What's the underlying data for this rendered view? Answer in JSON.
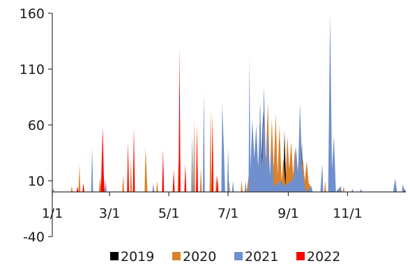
{
  "chart_data": {
    "type": "area",
    "title": "",
    "xlabel": "",
    "ylabel": "",
    "ylim": [
      -40,
      160
    ],
    "yticks": [
      -40,
      10,
      60,
      110,
      160
    ],
    "ytick_labels": [
      "-40",
      "10",
      "60",
      "110",
      "160"
    ],
    "xlim": [
      "1/1",
      "12/31"
    ],
    "xticks": [
      "1/1",
      "3/1",
      "5/1",
      "7/1",
      "9/1",
      "11/1"
    ],
    "xtick_labels": [
      "1/1",
      "3/1",
      "5/1",
      "7/1",
      "9/1",
      "11/1"
    ],
    "baseline": 0,
    "grid": false,
    "legend_position": "bottom",
    "series": [
      {
        "name": "2019",
        "color": "#000000",
        "points": [
          [
            "8/1",
            0
          ],
          [
            "8/3",
            80
          ],
          [
            "8/4",
            10
          ],
          [
            "8/6",
            72
          ],
          [
            "8/7",
            5
          ],
          [
            "8/16",
            0
          ],
          [
            "8/18",
            40
          ],
          [
            "8/19",
            5
          ],
          [
            "8/27",
            0
          ],
          [
            "8/28",
            55
          ],
          [
            "8/30",
            0
          ],
          [
            "9/2",
            0
          ],
          [
            "9/3",
            30
          ],
          [
            "9/4",
            0
          ],
          [
            "9/14",
            0
          ],
          [
            "9/15",
            45
          ],
          [
            "9/16",
            0
          ],
          [
            "12/28",
            0
          ],
          [
            "12/29",
            3
          ],
          [
            "12/31",
            0
          ]
        ]
      },
      {
        "name": "2020",
        "color": "#d9822b",
        "points": [
          [
            "1/20",
            0
          ],
          [
            "1/21",
            5
          ],
          [
            "1/22",
            0
          ],
          [
            "1/28",
            0
          ],
          [
            "1/29",
            25
          ],
          [
            "1/30",
            0
          ],
          [
            "2/18",
            0
          ],
          [
            "2/19",
            13
          ],
          [
            "2/21",
            0
          ],
          [
            "3/14",
            0
          ],
          [
            "3/15",
            15
          ],
          [
            "3/16",
            0
          ],
          [
            "3/22",
            0
          ],
          [
            "3/23",
            30
          ],
          [
            "3/24",
            0
          ],
          [
            "4/6",
            0
          ],
          [
            "4/7",
            40
          ],
          [
            "4/9",
            0
          ],
          [
            "4/18",
            0
          ],
          [
            "4/19",
            10
          ],
          [
            "4/20",
            0
          ],
          [
            "5/10",
            0
          ],
          [
            "5/11",
            30
          ],
          [
            "5/12",
            0
          ],
          [
            "5/26",
            0
          ],
          [
            "5/27",
            65
          ],
          [
            "5/28",
            0
          ],
          [
            "6/2",
            0
          ],
          [
            "6/3",
            22
          ],
          [
            "6/4",
            0
          ],
          [
            "6/12",
            0
          ],
          [
            "6/13",
            75
          ],
          [
            "6/14",
            0
          ],
          [
            "6/18",
            0
          ],
          [
            "6/19",
            15
          ],
          [
            "6/20",
            0
          ],
          [
            "7/1",
            0
          ],
          [
            "7/2",
            10
          ],
          [
            "7/3",
            0
          ],
          [
            "7/14",
            0
          ],
          [
            "7/15",
            10
          ],
          [
            "7/16",
            0
          ],
          [
            "7/20",
            0
          ],
          [
            "7/23",
            20
          ],
          [
            "7/26",
            0
          ],
          [
            "7/28",
            5
          ],
          [
            "7/31",
            0
          ],
          [
            "8/1",
            25
          ],
          [
            "8/3",
            55
          ],
          [
            "8/5",
            20
          ],
          [
            "8/7",
            45
          ],
          [
            "8/9",
            30
          ],
          [
            "8/11",
            80
          ],
          [
            "8/13",
            10
          ],
          [
            "8/15",
            65
          ],
          [
            "8/17",
            20
          ],
          [
            "8/19",
            70
          ],
          [
            "8/21",
            15
          ],
          [
            "8/23",
            60
          ],
          [
            "8/25",
            10
          ],
          [
            "8/27",
            30
          ],
          [
            "8/29",
            5
          ],
          [
            "8/31",
            50
          ],
          [
            "9/2",
            20
          ],
          [
            "9/4",
            45
          ],
          [
            "9/6",
            15
          ],
          [
            "9/8",
            40
          ],
          [
            "9/10",
            10
          ],
          [
            "9/12",
            35
          ],
          [
            "9/14",
            15
          ],
          [
            "9/16",
            30
          ],
          [
            "9/18",
            10
          ],
          [
            "9/20",
            28
          ],
          [
            "9/22",
            8
          ],
          [
            "9/24",
            5
          ],
          [
            "9/25",
            0
          ],
          [
            "10/8",
            0
          ],
          [
            "10/9",
            10
          ],
          [
            "10/10",
            0
          ],
          [
            "10/27",
            0
          ],
          [
            "10/28",
            5
          ],
          [
            "10/29",
            0
          ]
        ]
      },
      {
        "name": "2021",
        "color": "#6f8fce",
        "points": [
          [
            "1/1",
            0
          ],
          [
            "1/2",
            3
          ],
          [
            "1/3",
            0
          ],
          [
            "2/10",
            0
          ],
          [
            "2/11",
            40
          ],
          [
            "2/12",
            0
          ],
          [
            "2/24",
            0
          ],
          [
            "2/25",
            10
          ],
          [
            "2/26",
            0
          ],
          [
            "4/14",
            0
          ],
          [
            "4/15",
            8
          ],
          [
            "4/16",
            0
          ],
          [
            "4/24",
            0
          ],
          [
            "4/25",
            10
          ],
          [
            "4/26",
            0
          ],
          [
            "5/24",
            0
          ],
          [
            "5/25",
            50
          ],
          [
            "5/26",
            0
          ],
          [
            "6/5",
            0
          ],
          [
            "6/6",
            90
          ],
          [
            "6/7",
            0
          ],
          [
            "6/24",
            0
          ],
          [
            "6/25",
            80
          ],
          [
            "6/27",
            30
          ],
          [
            "6/28",
            0
          ],
          [
            "6/30",
            0
          ],
          [
            "7/1",
            40
          ],
          [
            "7/2",
            0
          ],
          [
            "7/5",
            0
          ],
          [
            "7/6",
            10
          ],
          [
            "7/7",
            0
          ],
          [
            "7/18",
            0
          ],
          [
            "7/19",
            10
          ],
          [
            "7/20",
            0
          ],
          [
            "7/22",
            0
          ],
          [
            "7/23",
            120
          ],
          [
            "7/24",
            20
          ],
          [
            "7/26",
            65
          ],
          [
            "7/28",
            30
          ],
          [
            "7/30",
            60
          ],
          [
            "8/1",
            20
          ],
          [
            "8/3",
            75
          ],
          [
            "8/5",
            25
          ],
          [
            "8/7",
            95
          ],
          [
            "8/9",
            20
          ],
          [
            "8/11",
            55
          ],
          [
            "8/13",
            15
          ],
          [
            "8/15",
            40
          ],
          [
            "8/17",
            5
          ],
          [
            "8/25",
            10
          ],
          [
            "8/27",
            5
          ],
          [
            "9/5",
            10
          ],
          [
            "9/7",
            15
          ],
          [
            "9/9",
            40
          ],
          [
            "9/11",
            15
          ],
          [
            "9/13",
            80
          ],
          [
            "9/15",
            25
          ],
          [
            "9/17",
            10
          ],
          [
            "9/19",
            0
          ],
          [
            "9/25",
            5
          ],
          [
            "9/26",
            0
          ],
          [
            "10/4",
            0
          ],
          [
            "10/6",
            25
          ],
          [
            "10/7",
            0
          ],
          [
            "10/12",
            0
          ],
          [
            "10/14",
            160
          ],
          [
            "10/16",
            20
          ],
          [
            "10/18",
            50
          ],
          [
            "10/20",
            0
          ],
          [
            "10/25",
            5
          ],
          [
            "10/26",
            0
          ],
          [
            "11/5",
            0
          ],
          [
            "11/6",
            3
          ],
          [
            "11/7",
            0
          ],
          [
            "11/14",
            0
          ],
          [
            "11/15",
            3
          ],
          [
            "11/16",
            0
          ],
          [
            "12/18",
            0
          ],
          [
            "12/20",
            12
          ],
          [
            "12/22",
            0
          ],
          [
            "12/27",
            0
          ],
          [
            "12/28",
            7
          ],
          [
            "12/30",
            0
          ]
        ]
      },
      {
        "name": "2022",
        "color": "#ff0000",
        "points": [
          [
            "1/26",
            0
          ],
          [
            "1/27",
            5
          ],
          [
            "1/28",
            0
          ],
          [
            "2/1",
            0
          ],
          [
            "2/2",
            8
          ],
          [
            "2/3",
            0
          ],
          [
            "2/20",
            0
          ],
          [
            "2/22",
            58
          ],
          [
            "2/23",
            15
          ],
          [
            "2/24",
            0
          ],
          [
            "3/19",
            0
          ],
          [
            "3/20",
            45
          ],
          [
            "3/21",
            0
          ],
          [
            "3/25",
            0
          ],
          [
            "3/26",
            58
          ],
          [
            "3/27",
            0
          ],
          [
            "4/24",
            0
          ],
          [
            "4/25",
            38
          ],
          [
            "4/26",
            0
          ],
          [
            "5/5",
            0
          ],
          [
            "5/6",
            20
          ],
          [
            "5/7",
            0
          ],
          [
            "5/11",
            0
          ],
          [
            "5/12",
            130
          ],
          [
            "5/13",
            0
          ],
          [
            "5/17",
            0
          ],
          [
            "5/18",
            25
          ],
          [
            "5/19",
            0
          ],
          [
            "5/29",
            0
          ],
          [
            "5/30",
            60
          ],
          [
            "5/31",
            0
          ],
          [
            "6/14",
            0
          ],
          [
            "6/15",
            70
          ],
          [
            "6/16",
            0
          ],
          [
            "6/19",
            0
          ],
          [
            "6/20",
            15
          ],
          [
            "6/21",
            0
          ]
        ]
      }
    ]
  }
}
